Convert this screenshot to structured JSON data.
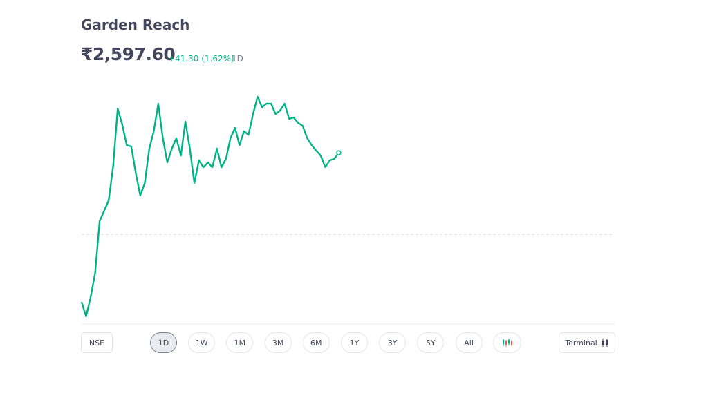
{
  "header": {
    "title": "Garden Reach",
    "price": "₹2,597.60",
    "change": "+41.30 (1.62%)",
    "period": "1D"
  },
  "chart_data": {
    "type": "line",
    "color": "#00b386",
    "values": [
      2522.0,
      2514.7,
      2524.5,
      2536.7,
      2563.0,
      2568.2,
      2573.5,
      2591.0,
      2620.0,
      2612.0,
      2601.5,
      2600.8,
      2587.5,
      2575.9,
      2582.2,
      2599.7,
      2608.5,
      2622.5,
      2605.0,
      2592.7,
      2599.7,
      2605.0,
      2596.2,
      2613.4,
      2599.7,
      2582.2,
      2593.8,
      2590.3,
      2592.7,
      2590.3,
      2599.7,
      2590.3,
      2594.5,
      2605.0,
      2610.2,
      2601.5,
      2608.5,
      2606.7,
      2617.2,
      2626.0,
      2620.7,
      2622.5,
      2622.5,
      2617.2,
      2619.0,
      2622.5,
      2614.8,
      2615.5,
      2612.7,
      2611.3,
      2605.0,
      2601.5,
      2598.7,
      2596.2,
      2590.3,
      2593.8,
      2594.5,
      2597.6
    ],
    "previous_close": 2556.3,
    "xlim": [
      0,
      118
    ],
    "ylim": [
      2514,
      2629.5
    ]
  },
  "controls": {
    "exchange": "NSE",
    "ranges": [
      "1D",
      "1W",
      "1M",
      "3M",
      "6M",
      "1Y",
      "3Y",
      "5Y",
      "All"
    ],
    "selected": 0,
    "terminal": "Terminal"
  }
}
